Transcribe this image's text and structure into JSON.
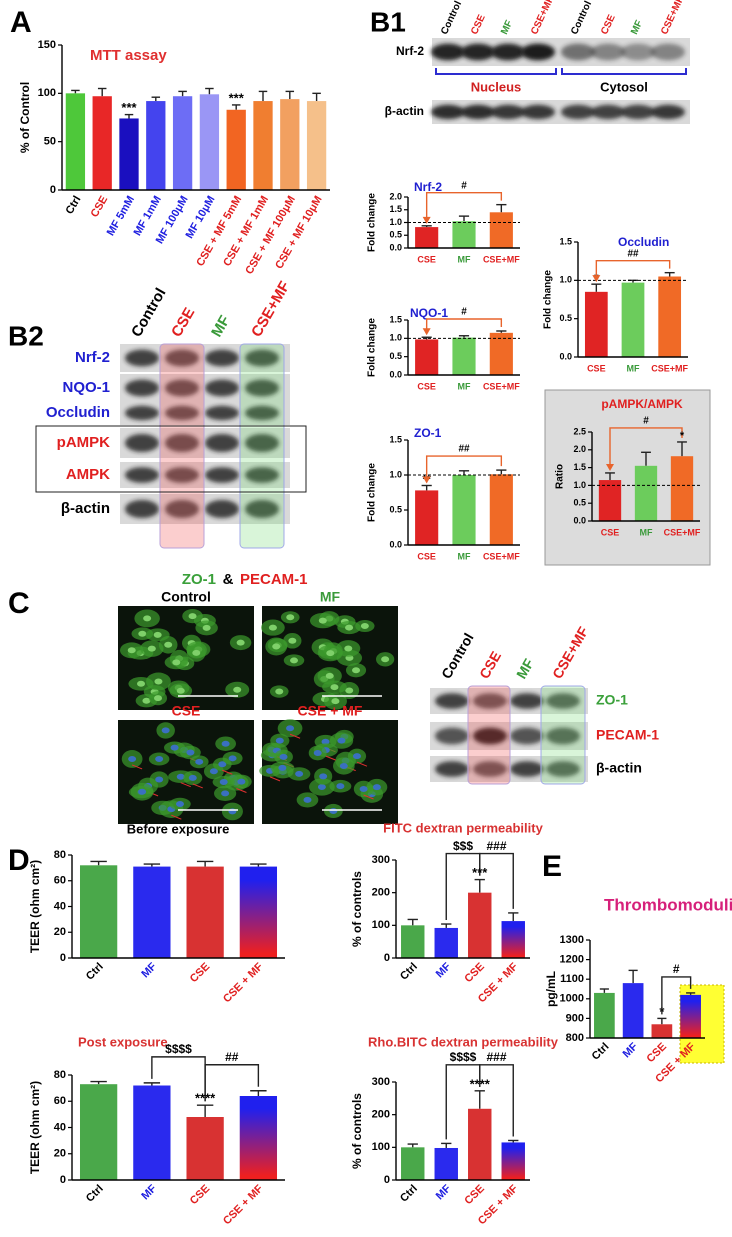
{
  "panels": [
    "A",
    "B1",
    "B2",
    "C",
    "D",
    "E"
  ],
  "blot_b1": {
    "lanes": [
      "Control",
      "CSE",
      "MF",
      "CSE+MF",
      "Control",
      "CSE",
      "MF",
      "CSE+MF"
    ],
    "rows": [
      "Nrf-2",
      "β-actin"
    ],
    "groups": [
      "Nucleus",
      "Cytosol"
    ]
  },
  "blot_b2": {
    "lanes": [
      "Control",
      "CSE",
      "MF",
      "CSE+MF"
    ],
    "rows": [
      "Nrf-2",
      "NQO-1",
      "Occludin",
      "pAMPK",
      "AMPK",
      "β-actin"
    ]
  },
  "panel_c": {
    "title": [
      "ZO-1",
      "&",
      "PECAM-1"
    ],
    "images": [
      "Control",
      "MF",
      "CSE",
      "CSE + MF"
    ],
    "blot_lanes": [
      "Control",
      "CSE",
      "MF",
      "CSE+MF"
    ],
    "blot_rows": [
      "ZO-1",
      "PECAM-1",
      "β-actin"
    ]
  },
  "chart_data": [
    {
      "type": "bar",
      "title": "MTT assay",
      "title_color": "#e03030",
      "ylabel": "% of Control",
      "categories": [
        "Ctrl",
        "CSE",
        "MF 5mM",
        "MF 1mM",
        "MF 100μM",
        "MF 10μM",
        "CSE + MF 5mM",
        "CSE + MF 1mM",
        "CSE + MF 100μM",
        "CSE + MF 10μM"
      ],
      "values": [
        100,
        97,
        74,
        92,
        97,
        99,
        83,
        92,
        94,
        92
      ],
      "errors": [
        3,
        8,
        4,
        4,
        5,
        6,
        5,
        10,
        8,
        8
      ],
      "colors": [
        "#4ec83a",
        "#e82727",
        "#1a0fbf",
        "#4444ee",
        "#6d6df5",
        "#9a96f5",
        "#f26522",
        "#f07e30",
        "#f2a060",
        "#f5c08a"
      ],
      "label_colors": [
        "#000000",
        "#e02020",
        "#2020e0",
        "#2020e0",
        "#2020e0",
        "#2020e0",
        "#e02020",
        "#e02020",
        "#e02020",
        "#e02020"
      ],
      "ylim": [
        0,
        150
      ],
      "yticks": [
        0,
        50,
        100,
        150
      ],
      "annotations": [
        "***",
        "***"
      ]
    },
    {
      "type": "bar",
      "title": "Nrf-2",
      "title_color": "#2020d0",
      "ylabel": "Fold change",
      "categories": [
        "CSE",
        "MF",
        "CSE+MF"
      ],
      "values": [
        0.82,
        1.05,
        1.4
      ],
      "errors": [
        0.05,
        0.2,
        0.3
      ],
      "colors": [
        "#e02424",
        "#6ccc5c",
        "#f06a26"
      ],
      "label_colors": [
        "#e02020",
        "#3a9a3a",
        "#e02020"
      ],
      "ylim": [
        0,
        2
      ],
      "yticks": [
        {
          "value": 0,
          "label": "0.0"
        },
        0.5,
        {
          "value": 1,
          "label": "1.0"
        },
        1.5,
        {
          "value": 2,
          "label": "2.0"
        }
      ],
      "ref_line": 1,
      "annotations": [
        "#"
      ]
    },
    {
      "type": "bar",
      "title": "Occludin",
      "title_color": "#2020d0",
      "ylabel": "Fold change",
      "categories": [
        "CSE",
        "MF",
        "CSE+MF"
      ],
      "values": [
        0.85,
        0.97,
        1.05
      ],
      "errors": [
        0.1,
        0.03,
        0.05
      ],
      "colors": [
        "#e02424",
        "#6ccc5c",
        "#f06a26"
      ],
      "label_colors": [
        "#e02020",
        "#3a9a3a",
        "#e02020"
      ],
      "ylim": [
        0,
        1.5
      ],
      "yticks": [
        {
          "value": 0,
          "label": "0.0"
        },
        0.5,
        {
          "value": 1,
          "label": "1.0"
        },
        1.5
      ],
      "ref_line": 1,
      "annotations": [
        "*",
        "##"
      ]
    },
    {
      "type": "bar",
      "title": "NQO-1",
      "title_color": "#2020d0",
      "ylabel": "Fold change",
      "categories": [
        "CSE",
        "MF",
        "CSE+MF"
      ],
      "values": [
        0.97,
        1.02,
        1.15
      ],
      "errors": [
        0.06,
        0.05,
        0.05
      ],
      "colors": [
        "#e02424",
        "#6ccc5c",
        "#f06a26"
      ],
      "label_colors": [
        "#e02020",
        "#3a9a3a",
        "#e02020"
      ],
      "ylim": [
        0,
        1.5
      ],
      "yticks": [
        {
          "value": 0,
          "label": "0.0"
        },
        0.5,
        {
          "value": 1,
          "label": "1.0"
        },
        1.5
      ],
      "ref_line": 1,
      "annotations": [
        "#"
      ]
    },
    {
      "type": "bar",
      "title": "ZO-1",
      "title_color": "#2020d0",
      "ylabel": "Fold change",
      "categories": [
        "CSE",
        "MF",
        "CSE+MF"
      ],
      "values": [
        0.78,
        1.0,
        1.01
      ],
      "errors": [
        0.07,
        0.06,
        0.06
      ],
      "colors": [
        "#e02424",
        "#6ccc5c",
        "#f06a26"
      ],
      "label_colors": [
        "#e02020",
        "#3a9a3a",
        "#e02020"
      ],
      "ylim": [
        0,
        1.5
      ],
      "yticks": [
        {
          "value": 0,
          "label": "0.0"
        },
        0.5,
        {
          "value": 1,
          "label": "1.0"
        },
        1.5
      ],
      "ref_line": 1,
      "annotations": [
        "**",
        "##"
      ]
    },
    {
      "type": "bar",
      "title": "pAMPK/AMPK",
      "title_color": "#e02020",
      "ylabel": "Ratio",
      "categories": [
        "CSE",
        "MF",
        "CSE+MF"
      ],
      "values": [
        1.15,
        1.55,
        1.82
      ],
      "errors": [
        0.2,
        0.38,
        0.4
      ],
      "colors": [
        "#e02424",
        "#6ccc5c",
        "#f06a26"
      ],
      "label_colors": [
        "#e02020",
        "#3a9a3a",
        "#e02020"
      ],
      "ylim": [
        0,
        2.5
      ],
      "yticks": [
        {
          "value": 0,
          "label": "0.0"
        },
        0.5,
        {
          "value": 1,
          "label": "1.0"
        },
        1.5,
        {
          "value": 2,
          "label": "2.0"
        },
        2.5
      ],
      "ref_line": 1,
      "annotations": [
        "#",
        "*"
      ]
    },
    {
      "type": "bar",
      "title": "Before exposure",
      "title_color": "#000000",
      "ylabel": "TEER (ohm cm²)",
      "categories": [
        "Ctrl",
        "MF",
        "CSE",
        "CSE + MF"
      ],
      "values": [
        72,
        71,
        71,
        71
      ],
      "errors": [
        3,
        2,
        4,
        2
      ],
      "colors": [
        "#4aa84a",
        "#2a2aee",
        "#d83232",
        [
          "#2020ee",
          "#ee2020"
        ]
      ],
      "label_colors": [
        "#000000",
        "#2020e0",
        "#e02020",
        "#e02020"
      ],
      "ylim": [
        0,
        80
      ],
      "yticks": [
        0,
        20,
        40,
        60,
        80
      ]
    },
    {
      "type": "bar",
      "title": "FITC dextran permeability",
      "title_color": "#d83232",
      "ylabel": "% of controls",
      "categories": [
        "Ctrl",
        "MF",
        "CSE",
        "CSE + MF"
      ],
      "values": [
        100,
        92,
        200,
        113
      ],
      "errors": [
        18,
        12,
        40,
        25
      ],
      "colors": [
        "#4aa84a",
        "#2a2aee",
        "#d83232",
        [
          "#2020ee",
          "#ee2020"
        ]
      ],
      "label_colors": [
        "#000000",
        "#2020e0",
        "#e02020",
        "#e02020"
      ],
      "ylim": [
        0,
        300
      ],
      "yticks": [
        0,
        100,
        200,
        300
      ],
      "annotations": [
        "$$$",
        "###",
        "***"
      ]
    },
    {
      "type": "bar",
      "title": "Post exposure",
      "title_color": "#d83232",
      "ylabel": "TEER (ohm cm²)",
      "categories": [
        "Ctrl",
        "MF",
        "CSE",
        "CSE + MF"
      ],
      "values": [
        73,
        72,
        48,
        64
      ],
      "errors": [
        2,
        2,
        9,
        4
      ],
      "colors": [
        "#4aa84a",
        "#2a2aee",
        "#d83232",
        [
          "#2020ee",
          "#ee2020"
        ]
      ],
      "label_colors": [
        "#000000",
        "#2020e0",
        "#e02020",
        "#e02020"
      ],
      "ylim": [
        0,
        80
      ],
      "yticks": [
        0,
        20,
        40,
        60,
        80
      ],
      "annotations": [
        "$$$$",
        "##",
        "****"
      ]
    },
    {
      "type": "bar",
      "title": "Rho.BITC dextran permeability",
      "title_color": "#d83232",
      "ylabel": "% of controls",
      "categories": [
        "Ctrl",
        "MF",
        "CSE",
        "CSE + MF"
      ],
      "values": [
        100,
        98,
        218,
        115
      ],
      "errors": [
        10,
        14,
        55,
        6
      ],
      "colors": [
        "#4aa84a",
        "#2a2aee",
        "#d83232",
        [
          "#2020ee",
          "#ee2020"
        ]
      ],
      "label_colors": [
        "#000000",
        "#2020e0",
        "#e02020",
        "#e02020"
      ],
      "ylim": [
        0,
        300
      ],
      "yticks": [
        0,
        100,
        200,
        300
      ],
      "annotations": [
        "$$$$",
        "###",
        "****"
      ]
    },
    {
      "type": "bar",
      "title": "Thrombomodulin",
      "title_color": "#d6207a",
      "ylabel": "pg/mL",
      "categories": [
        "Ctrl",
        "MF",
        "CSE",
        "CSE + MF"
      ],
      "values": [
        1030,
        1080,
        870,
        1020
      ],
      "errors": [
        20,
        65,
        30,
        10
      ],
      "colors": [
        "#4aa84a",
        "#2a2aee",
        "#d83232",
        [
          "#2020ee",
          "#ee2020"
        ]
      ],
      "label_colors": [
        "#000000",
        "#2020e0",
        "#e02020",
        "#e02020"
      ],
      "ylim": [
        800,
        1300
      ],
      "yticks": [
        800,
        900,
        1000,
        1100,
        1200,
        1300
      ],
      "annotations": [
        "*",
        "#"
      ]
    }
  ]
}
